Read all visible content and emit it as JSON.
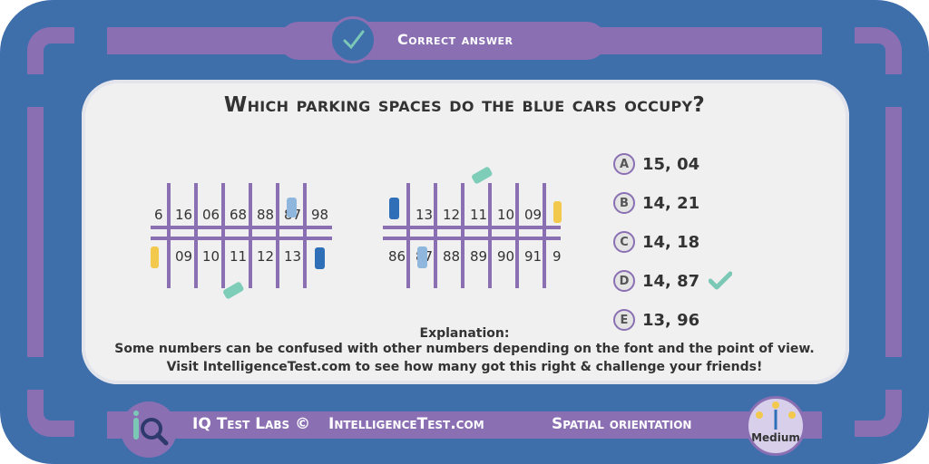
{
  "header": {
    "status_label": "Correct answer"
  },
  "question": {
    "text": "Which parking spaces do the blue cars occupy?"
  },
  "lot_left": {
    "top_numbers": [
      "6",
      "16",
      "06",
      "68",
      "88",
      "87",
      "98"
    ],
    "bottom_numbers": [
      "09",
      "10",
      "11",
      "12",
      "13"
    ]
  },
  "lot_right": {
    "top_numbers": [
      "13",
      "12",
      "11",
      "10",
      "09"
    ],
    "bottom_numbers": [
      "86",
      "87",
      "88",
      "89",
      "90",
      "91",
      "9"
    ]
  },
  "options": [
    {
      "letter": "A",
      "text": "15, 04"
    },
    {
      "letter": "B",
      "text": "14, 21"
    },
    {
      "letter": "C",
      "text": "14, 18"
    },
    {
      "letter": "D",
      "text": "14, 87",
      "correct": true
    },
    {
      "letter": "E",
      "text": "13, 96"
    }
  ],
  "explanation": {
    "title": "Explanation:",
    "line1": "Some numbers can be confused with other numbers depending on the font and the point of view.",
    "line2": "Visit IntelligenceTest.com to see how many got this right & challenge your friends!"
  },
  "footer": {
    "brand": "IQ Test Labs ©",
    "site": "IntelligenceTest.com",
    "category": "Spatial orientation",
    "difficulty": "Medium"
  },
  "colors": {
    "frame": "#3f6fab",
    "accent": "#8a6fb3",
    "check": "#7cc8b6",
    "car_blue": "#2e6fb8",
    "car_green": "#7ecdb9",
    "car_yellow": "#f2c94c"
  }
}
